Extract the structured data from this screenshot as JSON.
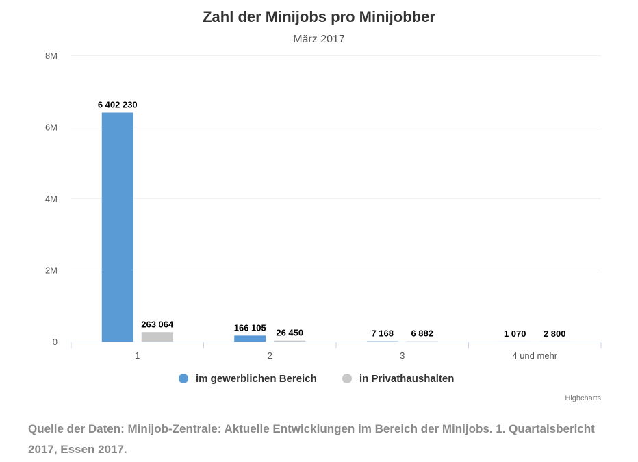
{
  "chart_data": {
    "type": "bar",
    "title": "Zahl der Minijobs pro Minijobber",
    "subtitle": "März 2017",
    "categories": [
      "1",
      "2",
      "3",
      "4 und mehr"
    ],
    "series": [
      {
        "name": "im gewerblichen Bereich",
        "color": "#5b9bd5",
        "values": [
          6402230,
          166105,
          7168,
          1070
        ],
        "labels": [
          "6 402 230",
          "166 105",
          "7 168",
          "1 070"
        ]
      },
      {
        "name": "in Privathaushalten",
        "color": "#c8c8c8",
        "values": [
          263064,
          26450,
          6882,
          2800
        ],
        "labels": [
          "263 064",
          "26 450",
          "6 882",
          "2 800"
        ]
      }
    ],
    "ylim": [
      0,
      8000000
    ],
    "yticks": [
      {
        "value": 0,
        "label": "0"
      },
      {
        "value": 2000000,
        "label": "2M"
      },
      {
        "value": 4000000,
        "label": "4M"
      },
      {
        "value": 6000000,
        "label": "6M"
      },
      {
        "value": 8000000,
        "label": "8M"
      }
    ],
    "grid": true,
    "legend_position": "bottom-center",
    "credits": "Highcharts"
  },
  "caption": "Quelle der Daten: Minijob-Zentrale: Aktuelle Entwicklungen im Bereich der Minijobs. 1. Quartalsbericht 2017, Essen 2017."
}
